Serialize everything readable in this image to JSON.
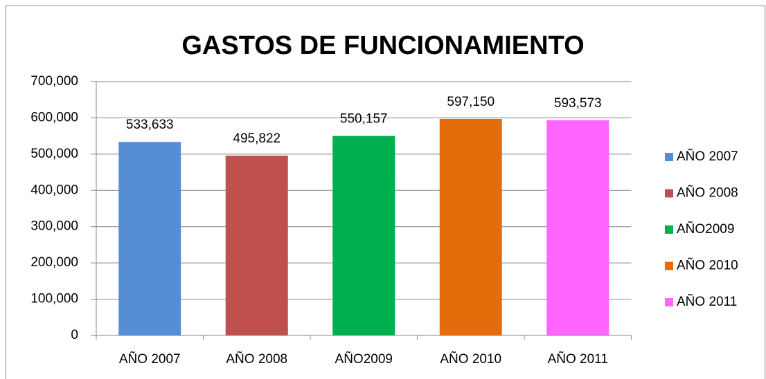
{
  "chart_data": {
    "type": "bar",
    "title": "GASTOS DE FUNCIONAMIENTO",
    "categories": [
      "AÑO 2007",
      "AÑO 2008",
      "AÑO2009",
      "AÑO 2010",
      "AÑO 2011"
    ],
    "values": [
      533633,
      495822,
      550157,
      597150,
      593573
    ],
    "value_labels": [
      "533,633",
      "495,822",
      "550,157",
      "597,150",
      "593,573"
    ],
    "colors": [
      "#558ed5",
      "#c0504d",
      "#00b050",
      "#e46c0a",
      "#ff66ff"
    ],
    "ylim": [
      0,
      700000
    ],
    "yticks": [
      0,
      {
        "value": 100000,
        "label": "100,000"
      },
      {
        "value": 200000,
        "label": "200,000"
      },
      {
        "value": 300000,
        "label": "300,000"
      },
      {
        "value": 400000,
        "label": "400,000"
      },
      {
        "value": 500000,
        "label": "500,000"
      },
      {
        "value": 600000,
        "label": "600,000"
      },
      {
        "value": 700000,
        "label": "700,000"
      }
    ],
    "grid": true,
    "legend": "right"
  }
}
